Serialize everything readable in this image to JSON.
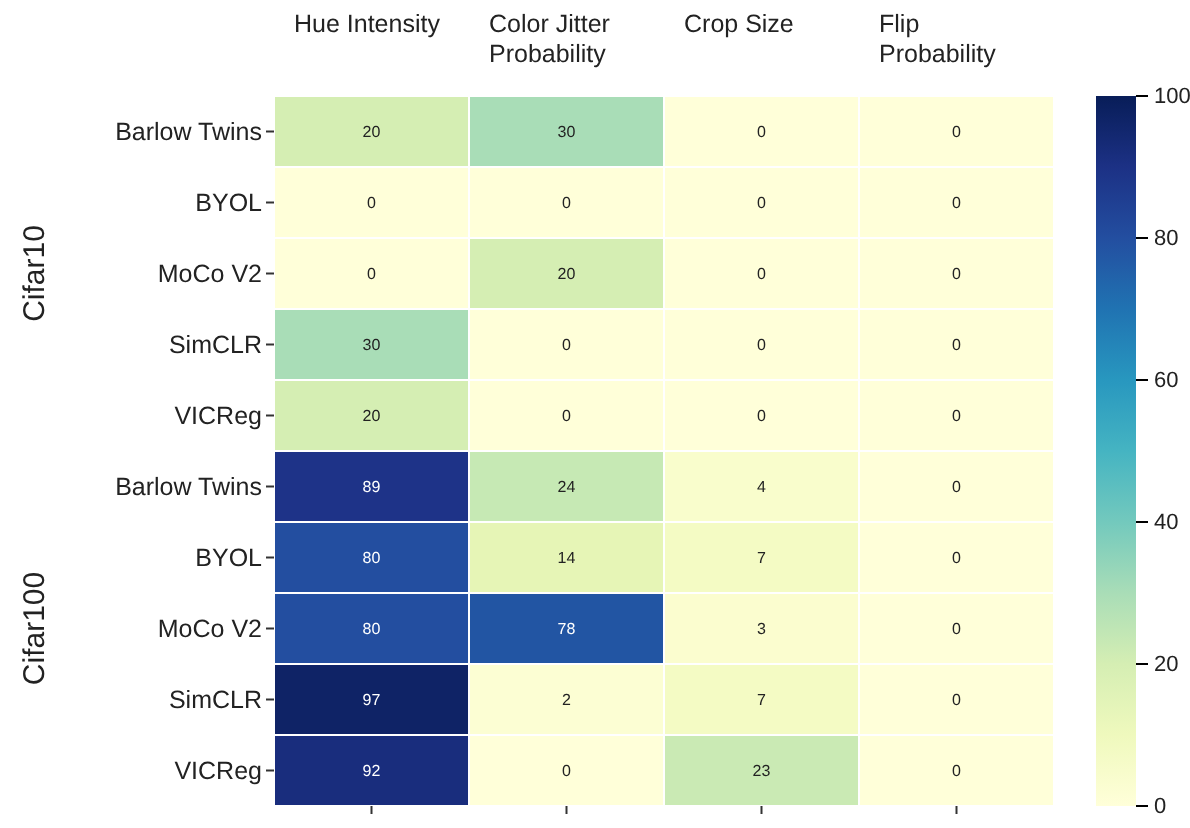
{
  "chart_data": {
    "type": "heatmap",
    "categories": [
      "Hue Intensity",
      "Color Jitter Probability",
      "Crop Size",
      "Flip Probability"
    ],
    "y_categories": [
      "Barlow Twins",
      "BYOL",
      "MoCo V2",
      "SimCLR",
      "VICReg",
      "Barlow Twins",
      "BYOL",
      "MoCo V2",
      "SimCLR",
      "VICReg"
    ],
    "cells": [
      [
        20,
        30,
        0,
        0
      ],
      [
        0,
        0,
        0,
        0
      ],
      [
        0,
        20,
        0,
        0
      ],
      [
        30,
        0,
        0,
        0
      ],
      [
        20,
        0,
        0,
        0
      ],
      [
        89,
        24,
        4,
        0
      ],
      [
        80,
        14,
        7,
        0
      ],
      [
        80,
        78,
        3,
        0
      ],
      [
        97,
        2,
        7,
        0
      ],
      [
        92,
        0,
        23,
        0
      ]
    ],
    "data_labels": true,
    "clim": [
      0,
      100
    ],
    "cticks": [
      0,
      20,
      40,
      60,
      80,
      100
    ],
    "annotations": [
      "Cifar10",
      "Cifar100"
    ]
  }
}
